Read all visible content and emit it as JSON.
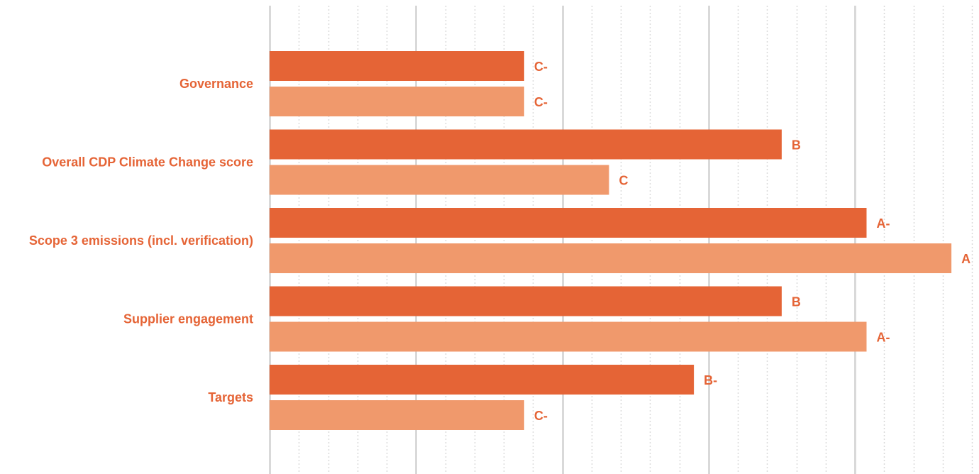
{
  "colors": {
    "series_dark": "#E56436",
    "series_light": "#F0996C",
    "label": "#E56436",
    "grid_major": "#D9D9D9",
    "grid_minor": "#D9D9D9"
  },
  "chart_data": {
    "type": "bar",
    "orientation": "horizontal",
    "title": "",
    "xlabel": "",
    "ylabel": "",
    "grid": true,
    "legend": "none",
    "value_scale_note": "bars encode letter grades; numeric positions read from the gridlines",
    "xlim": [
      0,
      24
    ],
    "categories": [
      "Governance",
      "Overall CDP Climate Change score",
      "Scope 3 emissions (incl. verification)",
      "Supplier engagement",
      "Targets"
    ],
    "series": [
      {
        "values": [
          8.7,
          17.5,
          20.4,
          17.5,
          14.5
        ],
        "labels": [
          "C-",
          "B",
          "A-",
          "B",
          "B-"
        ],
        "color": "#E56436"
      },
      {
        "values": [
          8.7,
          11.6,
          23.3,
          20.4,
          8.7
        ],
        "labels": [
          "C-",
          "C",
          "A",
          "A-",
          "C-"
        ],
        "color": "#F0996C"
      }
    ]
  }
}
